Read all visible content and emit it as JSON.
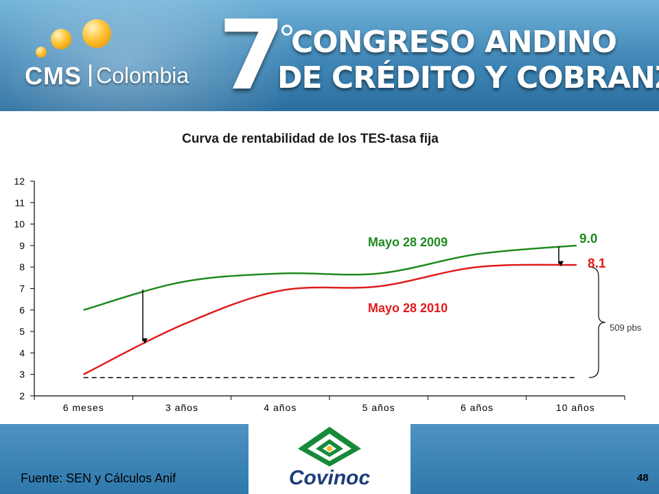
{
  "banner": {
    "brand": "CMS",
    "brand_sub": "Colombia",
    "event_number": "7",
    "event_line1": "CONGRESO ANDINO",
    "event_line2": "DE CRÉDITO Y COBRANZAS"
  },
  "colors": {
    "series_2009": "#1e8a1e",
    "series_2010": "#e01b1b",
    "axis": "#000000"
  },
  "chart_data": {
    "type": "line",
    "title": "Curva de rentabilidad de los TES-tasa fija",
    "xlabel": "",
    "ylabel": "",
    "categories": [
      "6 meses",
      "3 años",
      "4 años",
      "5 años",
      "6 años",
      "10 años"
    ],
    "yticks": [
      "2",
      "3",
      "4",
      "5",
      "6",
      "7",
      "8",
      "9",
      "10",
      "11",
      "12"
    ],
    "ylim": [
      2,
      12
    ],
    "grid": false,
    "series": [
      {
        "name": "Mayo 28 2009",
        "values": [
          6.0,
          7.3,
          7.7,
          7.7,
          8.6,
          9.0
        ],
        "end_label": "9.0"
      },
      {
        "name": "Mayo 28 2010",
        "values": [
          3.0,
          5.3,
          6.9,
          7.1,
          8.0,
          8.1
        ],
        "end_label": "8.1"
      }
    ],
    "reference_line": {
      "value": 2.85,
      "style": "dashed"
    },
    "annotations": {
      "spread": "509 pbs"
    }
  },
  "logo": {
    "name": "Covinoc"
  },
  "footer": {
    "source": "Fuente: SEN y Cálculos Anif",
    "page": "48"
  }
}
